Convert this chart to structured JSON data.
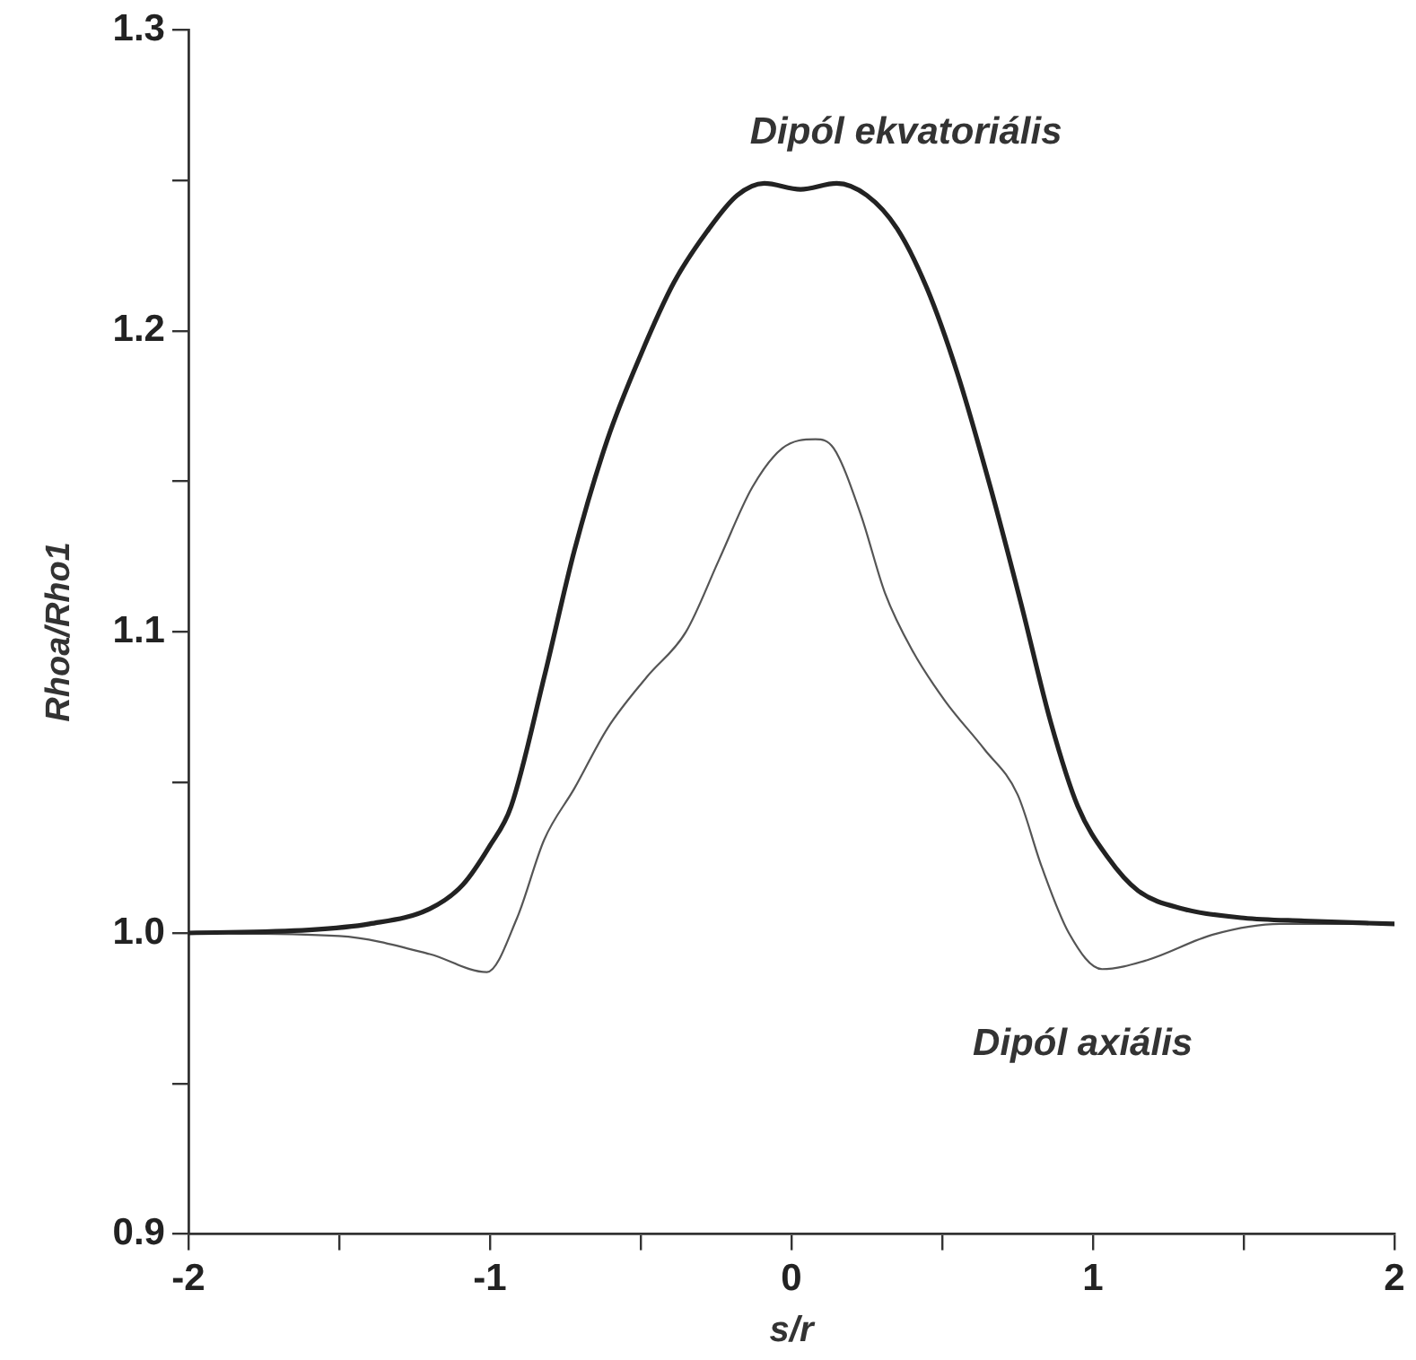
{
  "chart_data": {
    "type": "line",
    "xlabel": "s/r",
    "ylabel": "Rhoa/Rho1",
    "xlim": [
      -2,
      2
    ],
    "xticks": [
      -2,
      {
        "value": -1.5,
        "label": null
      },
      -1,
      {
        "value": -0.5,
        "label": null
      },
      0,
      {
        "value": 0.5,
        "label": null
      },
      1,
      {
        "value": 1.5,
        "label": null
      },
      2
    ],
    "ylim": [
      0.9,
      1.3
    ],
    "yticks": [
      0.9,
      {
        "value": 0.95,
        "label": null
      },
      {
        "value": 1,
        "label": "1.0"
      },
      {
        "value": 1.05,
        "label": null
      },
      1.1,
      {
        "value": 1.15,
        "label": null
      },
      1.2,
      {
        "value": 1.25,
        "label": null
      },
      1.3
    ],
    "grid": false,
    "legend": false,
    "marker": "none",
    "line_style": "solid",
    "series": [
      {
        "name": "Dipól ekvatoriális",
        "color": "#222222",
        "x": [
          -2,
          -1.6,
          -1.4,
          -1.2,
          -1.09,
          -1,
          -0.93,
          -0.82,
          -0.72,
          -0.61,
          -0.5,
          -0.39,
          -0.28,
          -0.18,
          -0.09,
          0.03,
          0.15,
          0.25,
          0.35,
          0.45,
          0.55,
          0.66,
          0.76,
          0.86,
          0.95,
          1.05,
          1.15,
          1.3,
          1.5,
          1.7,
          2
        ],
        "values": [
          1,
          1.001,
          1.003,
          1.008,
          1.016,
          1.029,
          1.042,
          1.085,
          1.127,
          1.164,
          1.192,
          1.216,
          1.233,
          1.245,
          1.249,
          1.247,
          1.249,
          1.245,
          1.234,
          1.214,
          1.186,
          1.148,
          1.11,
          1.07,
          1.042,
          1.025,
          1.014,
          1.008,
          1.005,
          1.004,
          1.003
        ]
      },
      {
        "name": "Dipól axiális",
        "color": "#555555",
        "x": [
          -2,
          -1.5,
          -1.2,
          -1.01,
          -0.91,
          -0.82,
          -0.72,
          -0.61,
          -0.48,
          -0.35,
          -0.24,
          -0.13,
          -0.03,
          0.08,
          0.14,
          0.23,
          0.31,
          0.4,
          0.51,
          0.64,
          0.75,
          0.83,
          0.92,
          1.03,
          1.18,
          1.4,
          1.62,
          2
        ],
        "values": [
          1,
          0.999,
          0.993,
          0.987,
          1.005,
          1.031,
          1.048,
          1.068,
          1.085,
          1.1,
          1.124,
          1.148,
          1.161,
          1.164,
          1.161,
          1.139,
          1.113,
          1.094,
          1.077,
          1.061,
          1.046,
          1.022,
          1,
          0.988,
          0.991,
          0.9995,
          1.003,
          1.003
        ]
      }
    ]
  }
}
